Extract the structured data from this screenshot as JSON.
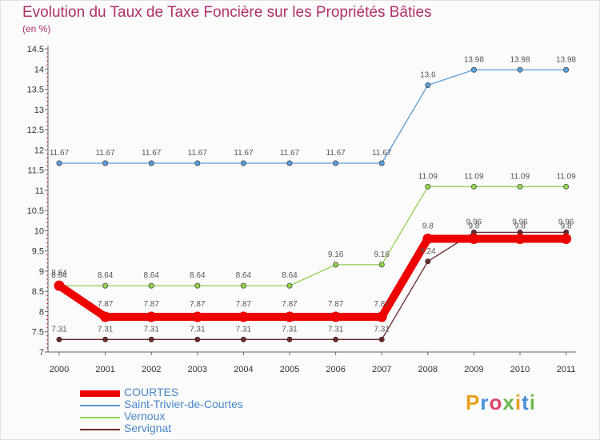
{
  "title": "Evolution du Taux de Taxe Foncière sur les Propriétés Bâties",
  "subtitle": "(en %)",
  "logo": "Proxiti",
  "chart_data": {
    "type": "line",
    "x": [
      "2000",
      "2001",
      "2002",
      "2003",
      "2004",
      "2005",
      "2006",
      "2007",
      "2008",
      "2009",
      "2010",
      "2011"
    ],
    "yticks": [
      "7",
      "7.5",
      "8",
      "8.5",
      "9",
      "9.5",
      "10",
      "10.5",
      "11",
      "11.5",
      "12",
      "12.5",
      "13",
      "13.5",
      "14",
      "14.5"
    ],
    "ylim": [
      7,
      14.5
    ],
    "grid": false,
    "legend_position": "bottom-left",
    "series": [
      {
        "name": "COURTES",
        "color": "#ee0000",
        "values": [
          8.64,
          7.87,
          7.87,
          7.87,
          7.87,
          7.87,
          7.87,
          7.87,
          9.8,
          9.8,
          9.8,
          9.8
        ],
        "labels": [
          "8.64",
          "7.87",
          "7.87",
          "7.87",
          "7.87",
          "7.87",
          "7.87",
          "7.87",
          "9.8",
          "9.8",
          "9.8",
          "9.8"
        ]
      },
      {
        "name": "Saint-Trivier-de-Courtes",
        "color": "#5b9bd5",
        "values": [
          11.67,
          11.67,
          11.67,
          11.67,
          11.67,
          11.67,
          11.67,
          11.67,
          13.6,
          13.98,
          13.98,
          13.98
        ],
        "labels": [
          "11.67",
          "11.67",
          "11.67",
          "11.67",
          "11.67",
          "11.67",
          "11.67",
          "11.67",
          "13.6",
          "13.98",
          "13.98",
          "13.98"
        ]
      },
      {
        "name": "Vernoux",
        "color": "#92d050",
        "values": [
          8.64,
          8.64,
          8.64,
          8.64,
          8.64,
          8.64,
          9.16,
          9.16,
          11.09,
          11.09,
          11.09,
          11.09
        ],
        "labels": [
          "8.64",
          "8.64",
          "8.64",
          "8.64",
          "8.64",
          "8.64",
          "9.16",
          "9.16",
          "11.09",
          "11.09",
          "11.09",
          "11.09"
        ]
      },
      {
        "name": "Servignat",
        "color": "#6b2a2a",
        "values": [
          7.31,
          7.31,
          7.31,
          7.31,
          7.31,
          7.31,
          7.31,
          7.31,
          9.24,
          9.96,
          9.96,
          9.96
        ],
        "labels": [
          "7.31",
          "7.31",
          "7.31",
          "7.31",
          "7.31",
          "7.31",
          "7.31",
          "7.31",
          "9.24",
          "9.96",
          "9.96",
          "9.96"
        ]
      }
    ]
  }
}
